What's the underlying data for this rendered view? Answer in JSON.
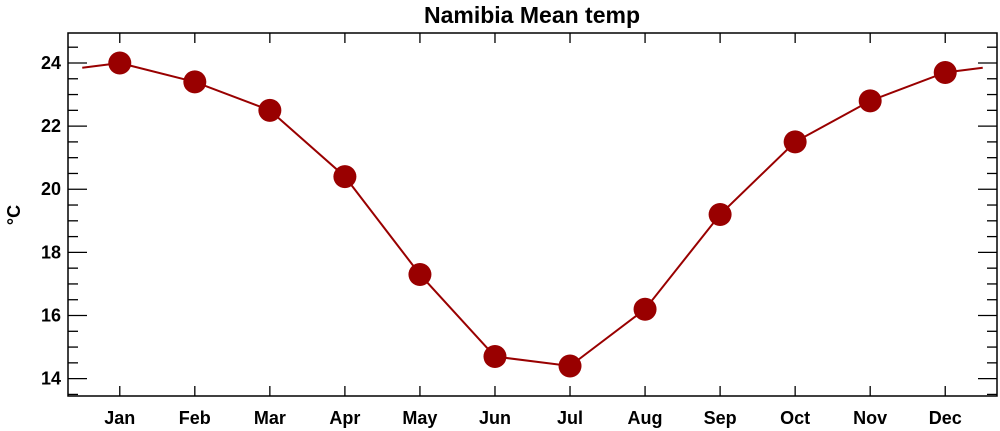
{
  "chart_data": {
    "type": "line",
    "title": "Namibia Mean temp",
    "xlabel": "",
    "ylabel": "°C",
    "categories": [
      "Jan",
      "Feb",
      "Mar",
      "Apr",
      "May",
      "Jun",
      "Jul",
      "Aug",
      "Sep",
      "Oct",
      "Nov",
      "Dec"
    ],
    "series": [
      {
        "name": "Mean temp",
        "values": [
          24.0,
          23.4,
          22.5,
          20.4,
          17.3,
          14.7,
          14.4,
          16.2,
          19.2,
          21.5,
          22.8,
          23.7
        ],
        "color": "#990000"
      }
    ],
    "yticks": [
      14,
      16,
      18,
      20,
      22,
      24
    ],
    "ylim": [
      13.45,
      24.95
    ],
    "xlim": [
      0.31,
      12.69
    ],
    "grid": false,
    "legend": "none"
  }
}
